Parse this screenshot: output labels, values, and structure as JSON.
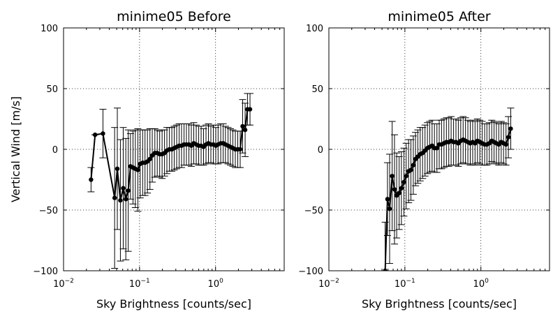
{
  "figure": {
    "shared_ylabel": "Vertical Wind [m/s]"
  },
  "chart_data": [
    {
      "type": "line",
      "title": "minime05 Before",
      "xlabel": "Sky Brightness [counts/sec]",
      "ylabel": "Vertical Wind [m/s]",
      "xscale": "log",
      "xlim": [
        0.01,
        8
      ],
      "ylim": [
        -100,
        100
      ],
      "xticks": [
        {
          "base": "10",
          "exp": "-2",
          "value": 0.01
        },
        {
          "base": "10",
          "exp": "-1",
          "value": 0.1
        },
        {
          "base": "10",
          "exp": "0",
          "value": 1
        }
      ],
      "yticks": [
        -100,
        -50,
        0,
        50,
        100
      ],
      "grid": true,
      "series": [
        {
          "color": "#000000",
          "x": [
            0.023,
            0.026,
            0.033,
            0.047,
            0.051,
            0.056,
            0.061,
            0.066,
            0.071,
            0.076,
            0.082,
            0.088,
            0.095,
            0.102,
            0.11,
            0.118,
            0.127,
            0.137,
            0.147,
            0.159,
            0.171,
            0.184,
            0.198,
            0.213,
            0.229,
            0.247,
            0.266,
            0.286,
            0.308,
            0.332,
            0.357,
            0.385,
            0.414,
            0.446,
            0.48,
            0.517,
            0.557,
            0.6,
            0.646,
            0.695,
            0.749,
            0.806,
            0.868,
            0.935,
            1.007,
            1.08,
            1.17,
            1.26,
            1.35,
            1.46,
            1.57,
            1.69,
            1.82,
            1.96,
            2.11,
            2.27,
            2.45,
            2.63,
            2.84
          ],
          "y": [
            -25,
            12,
            13,
            -40,
            -16,
            -42,
            -32,
            -41,
            -34,
            -14,
            -15,
            -16,
            -17,
            -12,
            -11,
            -11,
            -10,
            -8,
            -5,
            -3,
            -3,
            -4,
            -4,
            -3,
            -1,
            0,
            0,
            1,
            2,
            3,
            3,
            4,
            4,
            4,
            3,
            5,
            4,
            3,
            3,
            2,
            4,
            5,
            4,
            4,
            3,
            4,
            5,
            5,
            4,
            3,
            2,
            1,
            0,
            0,
            0,
            19,
            16,
            33,
            33
          ],
          "err": [
            10,
            0,
            20,
            58,
            50,
            50,
            50,
            50,
            50,
            27,
            30,
            32,
            34,
            28,
            27,
            27,
            26,
            25,
            22,
            20,
            19,
            19,
            20,
            19,
            19,
            18,
            18,
            18,
            18,
            18,
            18,
            17,
            17,
            17,
            17,
            17,
            16,
            16,
            16,
            15,
            16,
            16,
            15,
            16,
            15,
            16,
            16,
            16,
            15,
            15,
            15,
            15,
            15,
            15,
            15,
            22,
            22,
            13,
            13
          ]
        }
      ]
    },
    {
      "type": "line",
      "title": "minime05 After",
      "xlabel": "Sky Brightness [counts/sec]",
      "ylabel": "",
      "xscale": "log",
      "xlim": [
        0.01,
        8
      ],
      "ylim": [
        -100,
        100
      ],
      "xticks": [
        {
          "base": "10",
          "exp": "-2",
          "value": 0.01
        },
        {
          "base": "10",
          "exp": "-1",
          "value": 0.1
        },
        {
          "base": "10",
          "exp": "0",
          "value": 1
        }
      ],
      "yticks": [
        -100,
        -50,
        0,
        50,
        100
      ],
      "grid": true,
      "series": [
        {
          "color": "#000000",
          "x": [
            0.055,
            0.059,
            0.063,
            0.068,
            0.073,
            0.078,
            0.084,
            0.09,
            0.097,
            0.104,
            0.112,
            0.12,
            0.129,
            0.138,
            0.148,
            0.159,
            0.171,
            0.184,
            0.198,
            0.212,
            0.228,
            0.245,
            0.264,
            0.283,
            0.304,
            0.327,
            0.352,
            0.378,
            0.406,
            0.437,
            0.47,
            0.505,
            0.543,
            0.584,
            0.627,
            0.674,
            0.725,
            0.78,
            0.838,
            0.901,
            0.968,
            1.04,
            1.12,
            1.2,
            1.29,
            1.39,
            1.49,
            1.6,
            1.72,
            1.85,
            1.99,
            2.14,
            2.3,
            2.47
          ],
          "y": [
            -100,
            -41,
            -49,
            -22,
            -33,
            -38,
            -36,
            -32,
            -27,
            -22,
            -18,
            -17,
            -13,
            -8,
            -6,
            -4,
            -3,
            -1,
            1,
            2,
            3,
            1,
            1,
            4,
            4,
            5,
            6,
            6,
            7,
            6,
            6,
            5,
            7,
            8,
            7,
            6,
            5,
            6,
            5,
            7,
            6,
            5,
            4,
            4,
            5,
            7,
            6,
            5,
            4,
            6,
            5,
            4,
            10,
            17
          ],
          "err": [
            40,
            30,
            45,
            45,
            45,
            35,
            30,
            30,
            28,
            27,
            26,
            25,
            24,
            22,
            22,
            22,
            21,
            21,
            21,
            21,
            21,
            20,
            20,
            20,
            20,
            20,
            20,
            20,
            20,
            19,
            19,
            19,
            19,
            19,
            19,
            18,
            18,
            18,
            18,
            18,
            18,
            18,
            17,
            17,
            17,
            17,
            17,
            17,
            17,
            17,
            17,
            17,
            17,
            17
          ]
        }
      ]
    }
  ]
}
